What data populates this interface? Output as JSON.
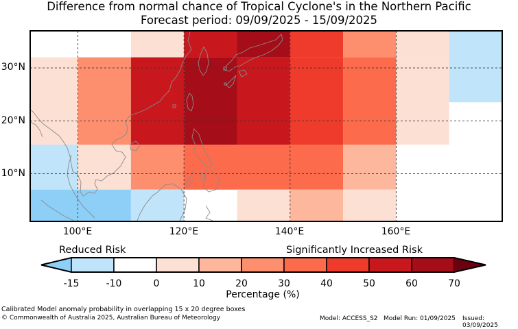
{
  "title": {
    "line1": "Difference from normal chance of Tropical Cyclone's in the Northern Pacific",
    "line2": "Forecast period: 09/09/2025 - 15/09/2025"
  },
  "map": {
    "lon_range": [
      91,
      180
    ],
    "lat_range": [
      1,
      37
    ],
    "x_ticks": [
      {
        "lon": 100,
        "label": "100°E"
      },
      {
        "lon": 120,
        "label": "120°E"
      },
      {
        "lon": 140,
        "label": "140°E"
      },
      {
        "lon": 160,
        "label": "160°E"
      }
    ],
    "y_ticks": [
      {
        "lat": 10,
        "label": "10°N"
      },
      {
        "lat": 20,
        "label": "20°N"
      },
      {
        "lat": 30,
        "label": "30°N"
      }
    ],
    "boxes": [
      {
        "lon0": 91,
        "lon1": 110,
        "lat0": 27,
        "lat1": 37,
        "level": 2
      },
      {
        "lon0": 110,
        "lon1": 120,
        "lat0": 32,
        "lat1": 37,
        "level": 3
      },
      {
        "lon0": 120,
        "lon1": 130,
        "lat0": 32,
        "lat1": 37,
        "level": 8
      },
      {
        "lon0": 130,
        "lon1": 140,
        "lat0": 32,
        "lat1": 37,
        "level": 9
      },
      {
        "lon0": 140,
        "lon1": 150,
        "lat0": 32,
        "lat1": 37,
        "level": 7
      },
      {
        "lon0": 150,
        "lon1": 160,
        "lat0": 32,
        "lat1": 37,
        "level": 5
      },
      {
        "lon0": 160,
        "lon1": 170,
        "lat0": 32,
        "lat1": 37,
        "level": 3
      },
      {
        "lon0": 170,
        "lon1": 180,
        "lat0": 32,
        "lat1": 37,
        "level": 1
      },
      {
        "lon0": 91,
        "lon1": 100,
        "lat0": 15.5,
        "lat1": 32,
        "level": 3
      },
      {
        "lon0": 100,
        "lon1": 110,
        "lat0": 15.5,
        "lat1": 32,
        "level": 5
      },
      {
        "lon0": 110,
        "lon1": 120,
        "lat0": 15.5,
        "lat1": 32,
        "level": 8
      },
      {
        "lon0": 120,
        "lon1": 130,
        "lat0": 15.5,
        "lat1": 32,
        "level": 9
      },
      {
        "lon0": 130,
        "lon1": 140,
        "lat0": 15.5,
        "lat1": 32,
        "level": 8
      },
      {
        "lon0": 140,
        "lon1": 150,
        "lat0": 15.5,
        "lat1": 32,
        "level": 7
      },
      {
        "lon0": 150,
        "lon1": 160,
        "lat0": 15.5,
        "lat1": 32,
        "level": 6
      },
      {
        "lon0": 160,
        "lon1": 170,
        "lat0": 15.5,
        "lat1": 32,
        "level": 3
      },
      {
        "lon0": 170,
        "lon1": 180,
        "lat0": 23.5,
        "lat1": 32,
        "level": 1
      },
      {
        "lon0": 91,
        "lon1": 100,
        "lat0": 7,
        "lat1": 15.5,
        "level": 1
      },
      {
        "lon0": 100,
        "lon1": 110,
        "lat0": 7,
        "lat1": 15.5,
        "level": 3
      },
      {
        "lon0": 110,
        "lon1": 120,
        "lat0": 7,
        "lat1": 15.5,
        "level": 5
      },
      {
        "lon0": 120,
        "lon1": 150,
        "lat0": 7,
        "lat1": 15.5,
        "level": 6
      },
      {
        "lon0": 150,
        "lon1": 160,
        "lat0": 7,
        "lat1": 15.5,
        "level": 4
      },
      {
        "lon0": 91,
        "lon1": 110,
        "lat0": 1,
        "lat1": 7,
        "level": 0
      },
      {
        "lon0": 110,
        "lon1": 120,
        "lat0": 1,
        "lat1": 7,
        "level": 1
      },
      {
        "lon0": 130,
        "lon1": 140,
        "lat0": 1,
        "lat1": 7,
        "level": 3
      },
      {
        "lon0": 140,
        "lon1": 150,
        "lat0": 1,
        "lat1": 7,
        "level": 4
      },
      {
        "lon0": 150,
        "lon1": 160,
        "lat0": 1,
        "lat1": 7,
        "level": 3
      }
    ]
  },
  "colorbar": {
    "label": "Percentage (%)",
    "reduced_label": "Reduced Risk",
    "increased_label": "Significantly Increased Risk",
    "ticks": [
      "-15",
      "-10",
      "0",
      "10",
      "20",
      "30",
      "40",
      "50",
      "60",
      "70"
    ],
    "colors": [
      "#8ecff8",
      "#c0e4fa",
      "#ffffff",
      "#fde0d4",
      "#fdb79d",
      "#fd8f6f",
      "#fc6b4c",
      "#ee3b2c",
      "#c8181e",
      "#a50e18",
      "#6b0010"
    ]
  },
  "footer": {
    "line1": "Calibrated Model anomaly probability in overlapping 15 x 20 degree boxes",
    "line2": "© Commonwealth of Australia 2025, Australian Bureau of Meteorology",
    "model": "Model: ACCESS_S2",
    "model_run": "Model Run: 01/09/2025",
    "issued": "Issued: 03/09/2025"
  }
}
